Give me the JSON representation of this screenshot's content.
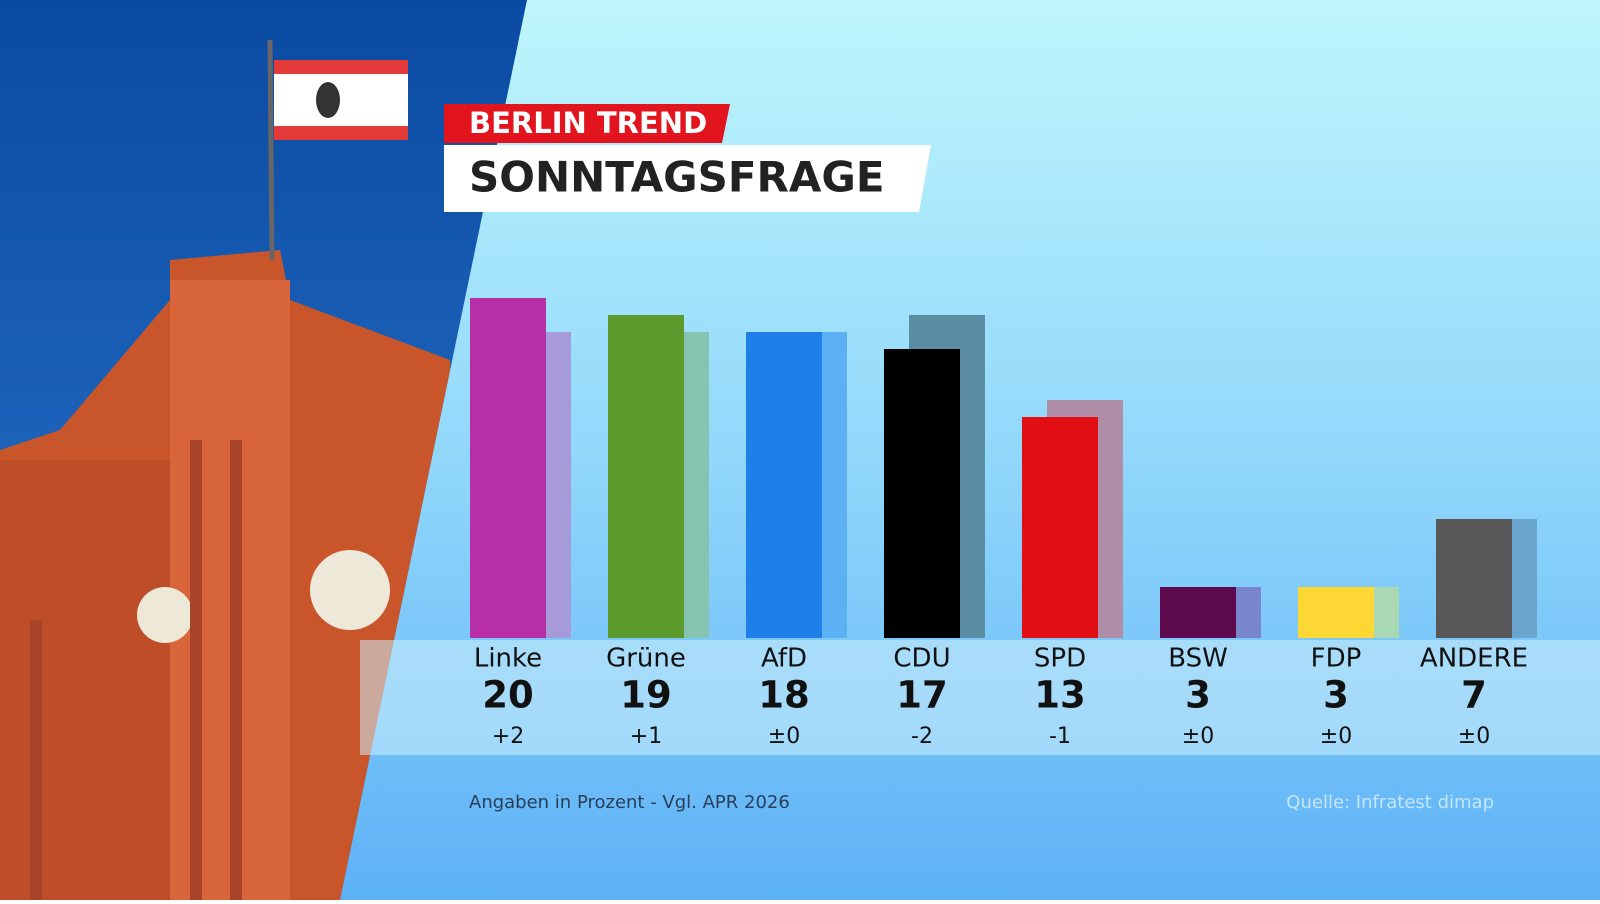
{
  "chart_data": {
    "type": "bar",
    "kicker": "BERLIN TREND",
    "title": "SONNTAGSFRAGE",
    "categories": [
      "Linke",
      "Grüne",
      "AfD",
      "CDU",
      "SPD",
      "BSW",
      "FDP",
      "ANDERE"
    ],
    "values": [
      20,
      19,
      18,
      17,
      13,
      3,
      3,
      7
    ],
    "colors": [
      "#b62fa8",
      "#5c9a2e",
      "#1f7fe8",
      "#000000",
      "#e10e14",
      "#5e0a4e",
      "#fdd834",
      "#585858"
    ],
    "changes": [
      2,
      1,
      0,
      -2,
      -1,
      0,
      0,
      0
    ],
    "change_labels": [
      "+2",
      "+1",
      "±0",
      "-2",
      "-1",
      "±0",
      "±0",
      "±0"
    ],
    "previous_values": [
      18,
      18,
      18,
      19,
      14,
      3,
      3,
      7
    ],
    "previous_colors": [
      "#a79ad9",
      "#86c3b0",
      "#5cb1f5",
      "#5b8ea5",
      "#b08ea8",
      "#7985cc",
      "#a9d8b5",
      "#6aa5ce"
    ],
    "ylim": [
      0,
      20
    ],
    "note": "Angaben in Prozent - Vgl. APR 2026",
    "source": "Quelle: Infratest dimap"
  }
}
